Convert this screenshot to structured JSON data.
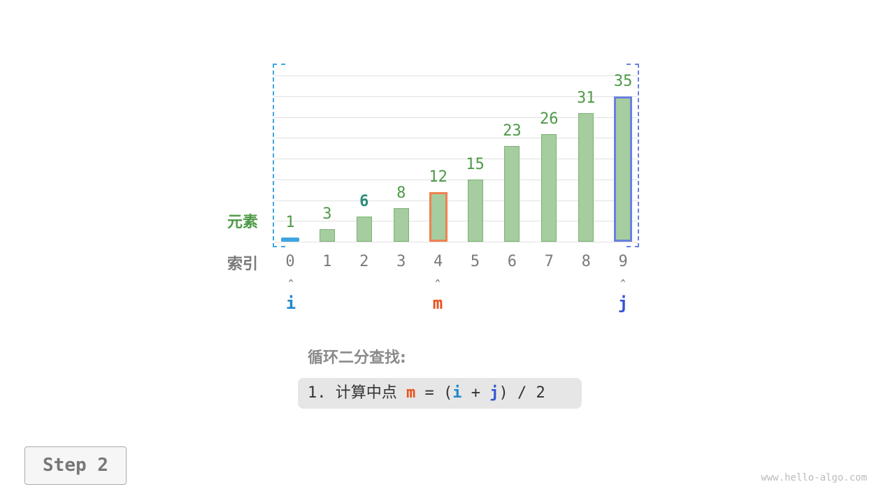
{
  "labels": {
    "element": "元素",
    "index": "索引"
  },
  "array": [
    1,
    3,
    6,
    8,
    12,
    15,
    23,
    26,
    31,
    35
  ],
  "indices": [
    "0",
    "1",
    "2",
    "3",
    "4",
    "5",
    "6",
    "7",
    "8",
    "9"
  ],
  "highlight": {
    "i": 0,
    "m": 4,
    "j": 9,
    "bold_value_index": 2
  },
  "pointers": {
    "i": "i",
    "m": "m",
    "j": "j",
    "arrow": "^"
  },
  "colors": {
    "i": "#1f88d0",
    "m": "#e8501a",
    "j": "#3554d1",
    "bar": "#a5cd9f",
    "m_border": "#f08050",
    "j_border": "#6a80dd",
    "i_border": "#3fa4e0",
    "value": "#4e9a47",
    "bold_value": "#2e8b7a"
  },
  "title": "循环二分查找:",
  "code": {
    "prefix": "1. 计算中点 ",
    "m": "m",
    "eq": " = (",
    "i": "i",
    "plus": " + ",
    "j": "j",
    "suffix": ") / 2"
  },
  "step": "Step 2",
  "watermark": "www.hello-algo.com"
}
